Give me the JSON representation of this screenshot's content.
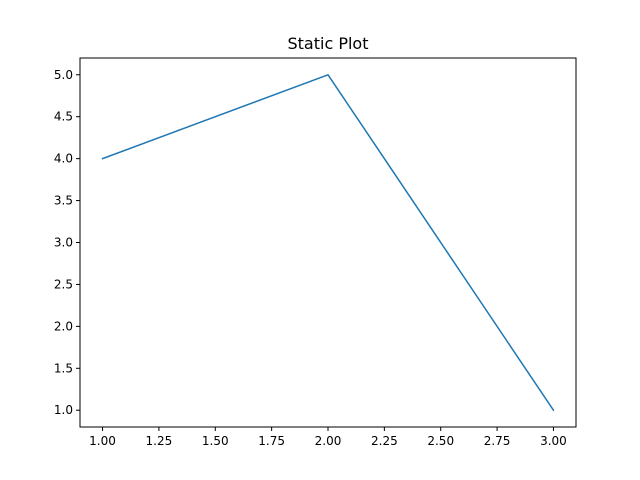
{
  "chart_data": {
    "type": "line",
    "title": "Static Plot",
    "xlabel": "",
    "ylabel": "",
    "xlim": [
      0.9,
      3.1
    ],
    "ylim": [
      0.8,
      5.2
    ],
    "x": [
      1,
      2,
      3
    ],
    "series": [
      {
        "values": [
          4,
          5,
          1
        ],
        "color": "#1f77b4"
      }
    ],
    "xticks": [
      1.0,
      1.25,
      1.5,
      1.75,
      2.0,
      2.25,
      2.5,
      2.75,
      3.0
    ],
    "xtick_labels": [
      "1.00",
      "1.25",
      "1.50",
      "1.75",
      "2.00",
      "2.25",
      "2.50",
      "2.75",
      "3.00"
    ],
    "yticks": [
      1.0,
      1.5,
      2.0,
      2.5,
      3.0,
      3.5,
      4.0,
      4.5,
      5.0
    ],
    "ytick_labels": [
      "1.0",
      "1.5",
      "2.0",
      "2.5",
      "3.0",
      "3.5",
      "4.0",
      "4.5",
      "5.0"
    ],
    "grid": false,
    "legend": "none"
  }
}
